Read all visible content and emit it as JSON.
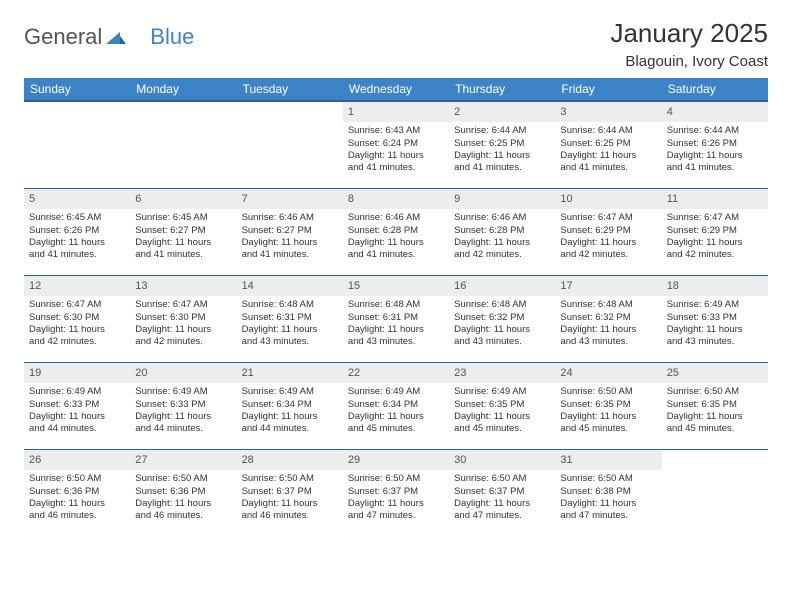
{
  "logo": {
    "text1": "General",
    "text2": "Blue"
  },
  "title": "January 2025",
  "location": "Blagouin, Ivory Coast",
  "colors": {
    "header_bg": "#3d84c6",
    "week_border": "#2f5f95",
    "daynum_bg": "#eceded",
    "logo_blue": "#3d84c6"
  },
  "day_labels": [
    "Sunday",
    "Monday",
    "Tuesday",
    "Wednesday",
    "Thursday",
    "Friday",
    "Saturday"
  ],
  "font": {
    "day_label_size": 12,
    "cell_size": 9.5,
    "title_size": 26,
    "location_size": 15
  },
  "weeks": [
    [
      null,
      null,
      null,
      {
        "n": "1",
        "sunrise": "6:43 AM",
        "sunset": "6:24 PM",
        "dlh": "11",
        "dlm": "41"
      },
      {
        "n": "2",
        "sunrise": "6:44 AM",
        "sunset": "6:25 PM",
        "dlh": "11",
        "dlm": "41"
      },
      {
        "n": "3",
        "sunrise": "6:44 AM",
        "sunset": "6:25 PM",
        "dlh": "11",
        "dlm": "41"
      },
      {
        "n": "4",
        "sunrise": "6:44 AM",
        "sunset": "6:26 PM",
        "dlh": "11",
        "dlm": "41"
      }
    ],
    [
      {
        "n": "5",
        "sunrise": "6:45 AM",
        "sunset": "6:26 PM",
        "dlh": "11",
        "dlm": "41"
      },
      {
        "n": "6",
        "sunrise": "6:45 AM",
        "sunset": "6:27 PM",
        "dlh": "11",
        "dlm": "41"
      },
      {
        "n": "7",
        "sunrise": "6:46 AM",
        "sunset": "6:27 PM",
        "dlh": "11",
        "dlm": "41"
      },
      {
        "n": "8",
        "sunrise": "6:46 AM",
        "sunset": "6:28 PM",
        "dlh": "11",
        "dlm": "41"
      },
      {
        "n": "9",
        "sunrise": "6:46 AM",
        "sunset": "6:28 PM",
        "dlh": "11",
        "dlm": "42"
      },
      {
        "n": "10",
        "sunrise": "6:47 AM",
        "sunset": "6:29 PM",
        "dlh": "11",
        "dlm": "42"
      },
      {
        "n": "11",
        "sunrise": "6:47 AM",
        "sunset": "6:29 PM",
        "dlh": "11",
        "dlm": "42"
      }
    ],
    [
      {
        "n": "12",
        "sunrise": "6:47 AM",
        "sunset": "6:30 PM",
        "dlh": "11",
        "dlm": "42"
      },
      {
        "n": "13",
        "sunrise": "6:47 AM",
        "sunset": "6:30 PM",
        "dlh": "11",
        "dlm": "42"
      },
      {
        "n": "14",
        "sunrise": "6:48 AM",
        "sunset": "6:31 PM",
        "dlh": "11",
        "dlm": "43"
      },
      {
        "n": "15",
        "sunrise": "6:48 AM",
        "sunset": "6:31 PM",
        "dlh": "11",
        "dlm": "43"
      },
      {
        "n": "16",
        "sunrise": "6:48 AM",
        "sunset": "6:32 PM",
        "dlh": "11",
        "dlm": "43"
      },
      {
        "n": "17",
        "sunrise": "6:48 AM",
        "sunset": "6:32 PM",
        "dlh": "11",
        "dlm": "43"
      },
      {
        "n": "18",
        "sunrise": "6:49 AM",
        "sunset": "6:33 PM",
        "dlh": "11",
        "dlm": "43"
      }
    ],
    [
      {
        "n": "19",
        "sunrise": "6:49 AM",
        "sunset": "6:33 PM",
        "dlh": "11",
        "dlm": "44"
      },
      {
        "n": "20",
        "sunrise": "6:49 AM",
        "sunset": "6:33 PM",
        "dlh": "11",
        "dlm": "44"
      },
      {
        "n": "21",
        "sunrise": "6:49 AM",
        "sunset": "6:34 PM",
        "dlh": "11",
        "dlm": "44"
      },
      {
        "n": "22",
        "sunrise": "6:49 AM",
        "sunset": "6:34 PM",
        "dlh": "11",
        "dlm": "45"
      },
      {
        "n": "23",
        "sunrise": "6:49 AM",
        "sunset": "6:35 PM",
        "dlh": "11",
        "dlm": "45"
      },
      {
        "n": "24",
        "sunrise": "6:50 AM",
        "sunset": "6:35 PM",
        "dlh": "11",
        "dlm": "45"
      },
      {
        "n": "25",
        "sunrise": "6:50 AM",
        "sunset": "6:35 PM",
        "dlh": "11",
        "dlm": "45"
      }
    ],
    [
      {
        "n": "26",
        "sunrise": "6:50 AM",
        "sunset": "6:36 PM",
        "dlh": "11",
        "dlm": "46"
      },
      {
        "n": "27",
        "sunrise": "6:50 AM",
        "sunset": "6:36 PM",
        "dlh": "11",
        "dlm": "46"
      },
      {
        "n": "28",
        "sunrise": "6:50 AM",
        "sunset": "6:37 PM",
        "dlh": "11",
        "dlm": "46"
      },
      {
        "n": "29",
        "sunrise": "6:50 AM",
        "sunset": "6:37 PM",
        "dlh": "11",
        "dlm": "47"
      },
      {
        "n": "30",
        "sunrise": "6:50 AM",
        "sunset": "6:37 PM",
        "dlh": "11",
        "dlm": "47"
      },
      {
        "n": "31",
        "sunrise": "6:50 AM",
        "sunset": "6:38 PM",
        "dlh": "11",
        "dlm": "47"
      },
      null
    ]
  ],
  "labels": {
    "sunrise": "Sunrise:",
    "sunset": "Sunset:",
    "daylight_prefix": "Daylight:",
    "hours_word": "hours",
    "and_word": "and",
    "minutes_word": "minutes."
  }
}
